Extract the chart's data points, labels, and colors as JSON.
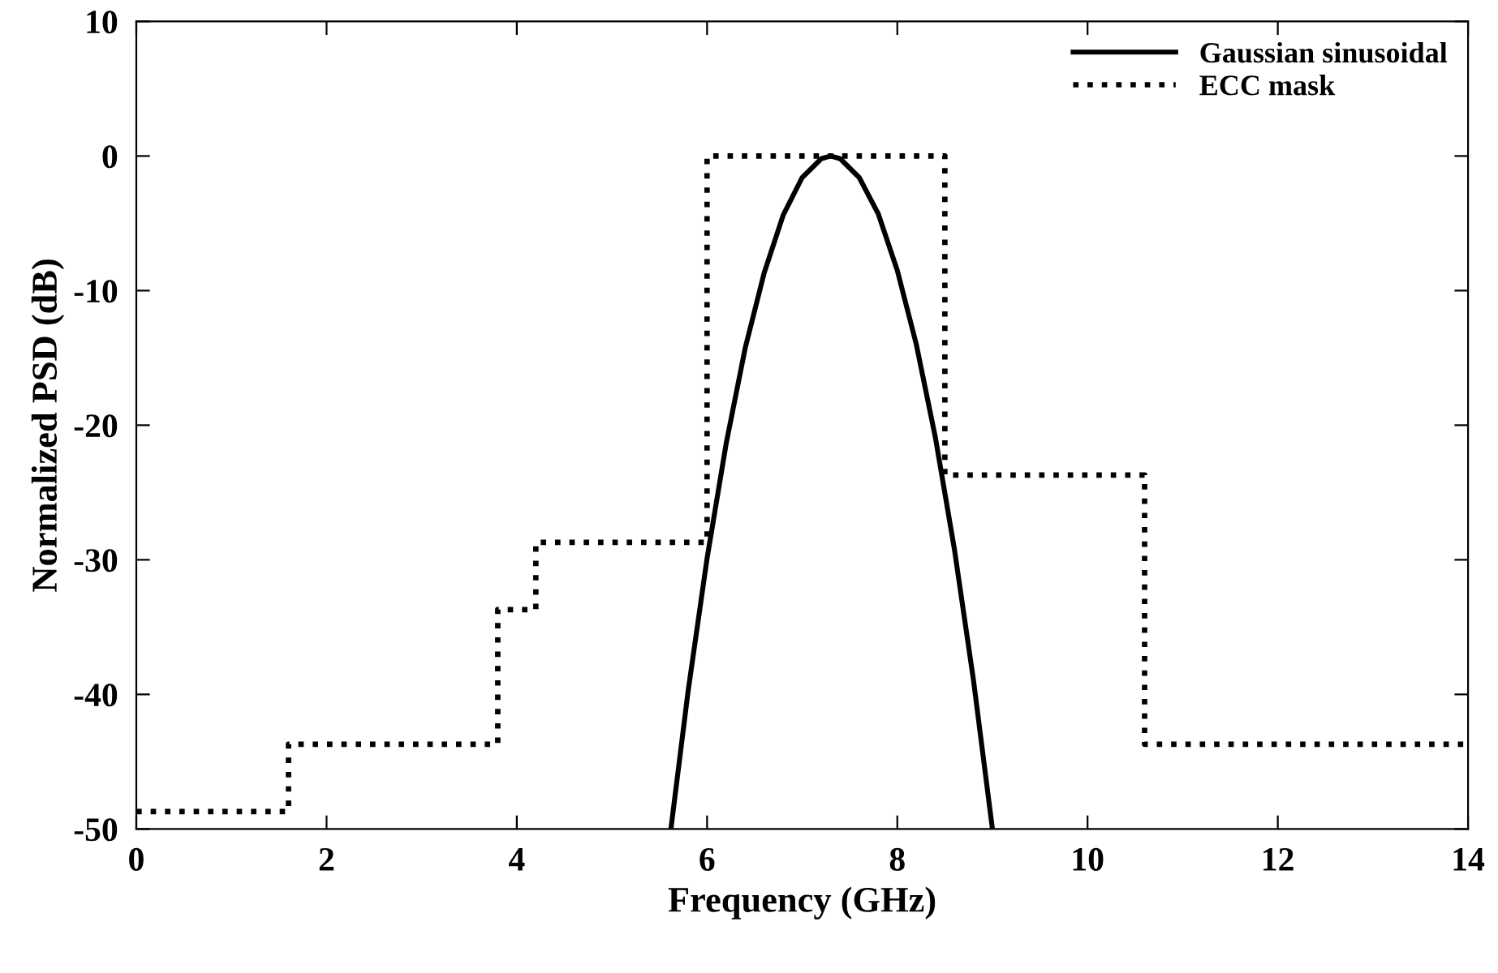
{
  "chart_data": {
    "type": "line",
    "xlabel": "Frequency (GHz)",
    "ylabel": "Normalized PSD (dB)",
    "xlim": [
      0,
      14
    ],
    "ylim": [
      -50,
      10
    ],
    "xticks": [
      0,
      2,
      4,
      6,
      8,
      10,
      12,
      14
    ],
    "yticks": [
      -50,
      -40,
      -30,
      -20,
      -10,
      0,
      10
    ],
    "grid": false,
    "legend": "top right",
    "series": [
      {
        "name": "Gaussian sinusoidal",
        "line_style": "solid",
        "color": "#000000",
        "x": [
          5.62,
          5.8,
          6.0,
          6.2,
          6.4,
          6.6,
          6.8,
          7.0,
          7.2,
          7.3,
          7.4,
          7.6,
          7.8,
          8.0,
          8.2,
          8.4,
          8.6,
          8.8,
          9.0
        ],
        "values": [
          -50,
          -39.8,
          -29.9,
          -21.4,
          -14.3,
          -8.7,
          -4.4,
          -1.6,
          -0.2,
          0,
          -0.2,
          -1.6,
          -4.3,
          -8.5,
          -14.0,
          -20.9,
          -29.2,
          -38.9,
          -50
        ]
      },
      {
        "name": "ECC mask",
        "type": "step",
        "line_style": "dotted",
        "color": "#000000",
        "x": [
          0,
          1.6,
          3.8,
          4.2,
          6,
          8.5,
          10.6,
          14
        ],
        "values": [
          -48.7,
          -43.7,
          -33.7,
          -28.7,
          0,
          -23.7,
          -43.7,
          -43.7
        ]
      }
    ]
  }
}
